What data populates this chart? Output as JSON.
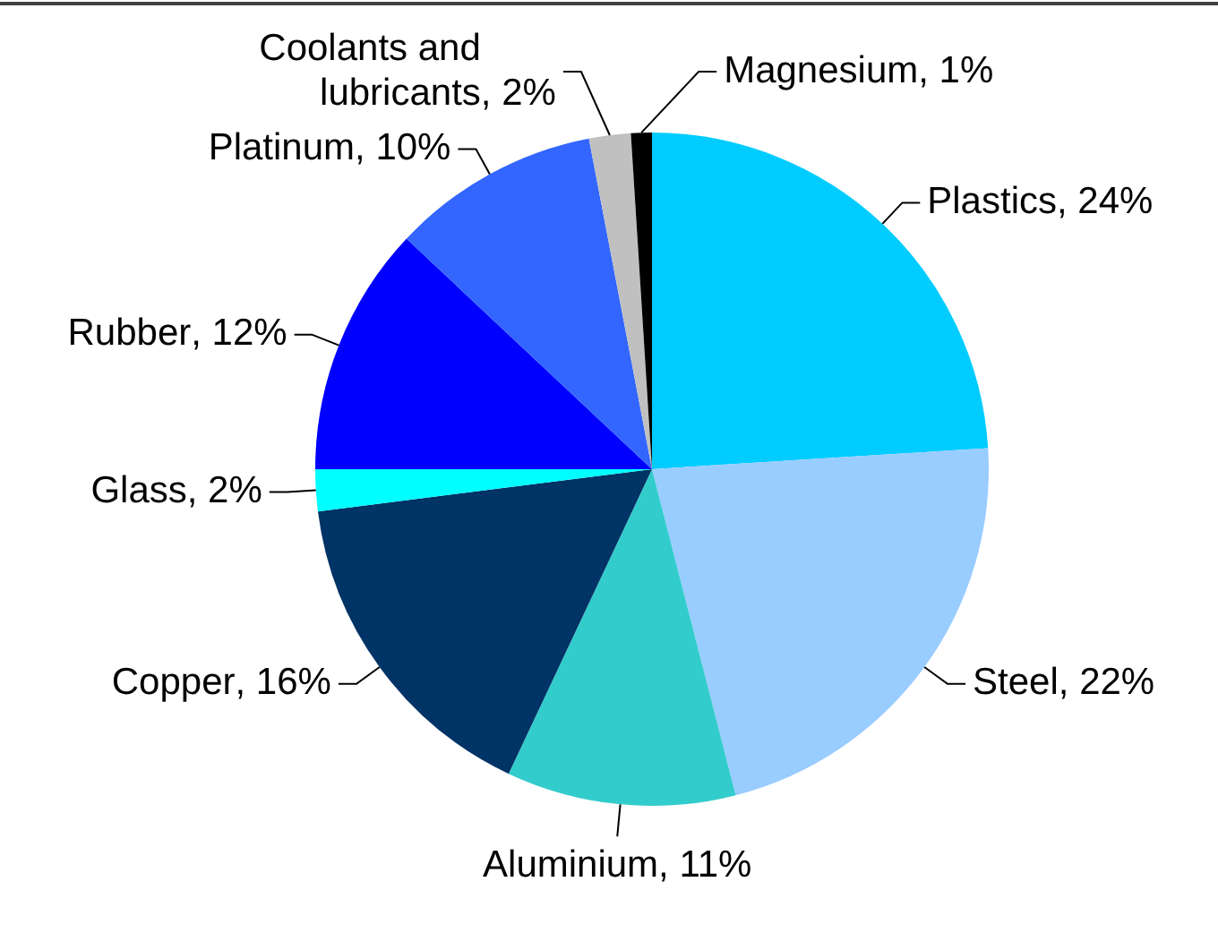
{
  "chart_data": {
    "type": "pie",
    "categories": [
      "Plastics",
      "Steel",
      "Aluminium",
      "Copper",
      "Glass",
      "Rubber",
      "Platinum",
      "Coolants and lubricants",
      "Magnesium"
    ],
    "values": [
      24,
      22,
      11,
      16,
      2,
      12,
      10,
      2,
      1
    ],
    "colors": [
      "#00ccff",
      "#99ccff",
      "#33cccc",
      "#003366",
      "#00ffff",
      "#0000ff",
      "#3366ff",
      "#c0c0c0",
      "#000000"
    ],
    "value_labels": [
      ", 24%",
      ", 22%",
      ", 11%",
      ", 16%",
      ", 2%",
      ", 12%",
      ", 10%",
      ", 2%",
      ", 1%"
    ]
  }
}
